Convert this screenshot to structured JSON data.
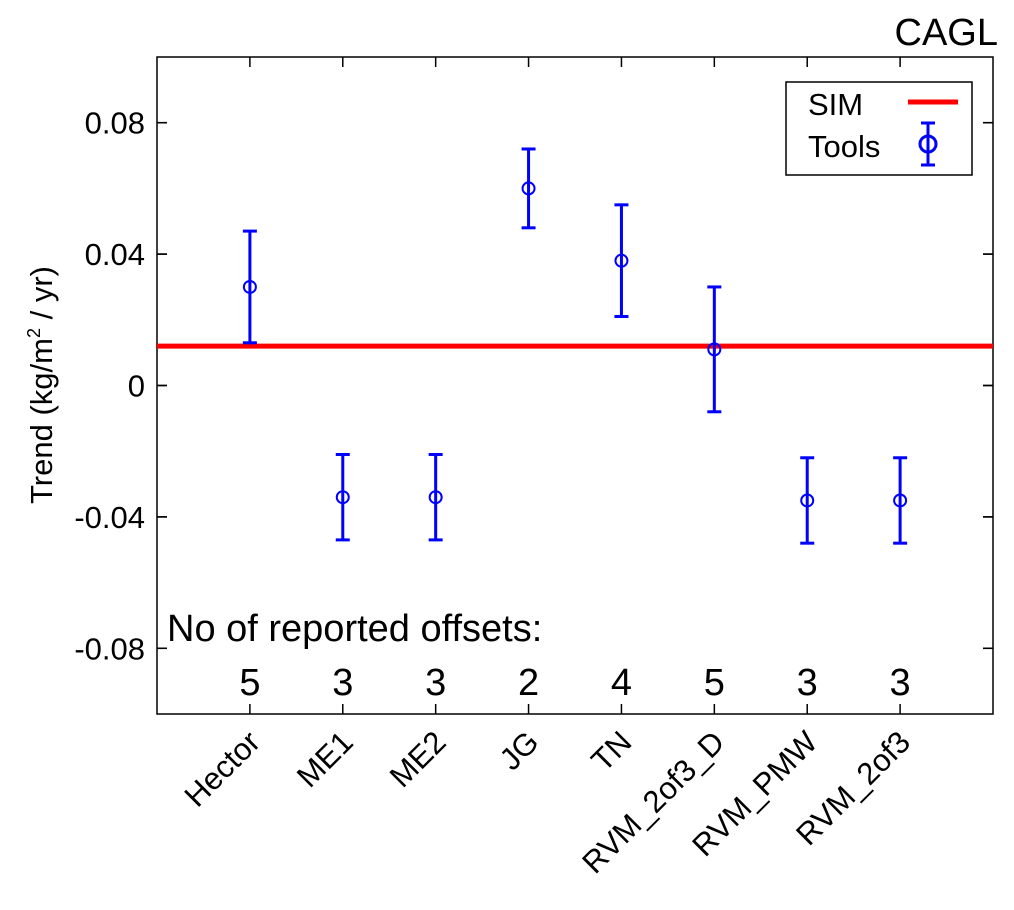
{
  "chart_data": {
    "type": "scatter",
    "title": "CAGL",
    "xlabel": "",
    "ylabel": "Trend (kg/m² / yr)",
    "ylim": [
      -0.1,
      0.1
    ],
    "yticks": [
      {
        "value": 0.08,
        "label": "0.08"
      },
      {
        "value": 0.04,
        "label": "0.04"
      },
      {
        "value": 0,
        "label": "0"
      },
      {
        "value": -0.04,
        "label": "-0.04"
      },
      {
        "value": -0.08,
        "label": "-0.08"
      }
    ],
    "categories": [
      "Hector",
      "ME1",
      "ME2",
      "JG",
      "TN",
      "RVM_2of3_D",
      "RVM_PMW",
      "RVM_2of3"
    ],
    "series": [
      {
        "name": "Tools",
        "color": "#0000ff",
        "values": [
          0.03,
          -0.034,
          -0.034,
          0.06,
          0.038,
          0.011,
          -0.035,
          -0.035
        ],
        "lower": [
          0.013,
          -0.047,
          -0.047,
          0.048,
          0.021,
          -0.008,
          -0.048,
          -0.048
        ],
        "upper": [
          0.047,
          -0.021,
          -0.021,
          0.072,
          0.055,
          0.03,
          -0.022,
          -0.022
        ]
      }
    ],
    "reference_line": {
      "name": "SIM",
      "value": 0.012,
      "color": "#ff0000"
    },
    "annotation": {
      "label": "No of reported offsets:",
      "counts": [
        "5",
        "3",
        "3",
        "2",
        "4",
        "5",
        "3",
        "3"
      ]
    },
    "legend": {
      "position": "top-right",
      "entries": [
        "SIM",
        "Tools"
      ]
    },
    "grid": false
  }
}
